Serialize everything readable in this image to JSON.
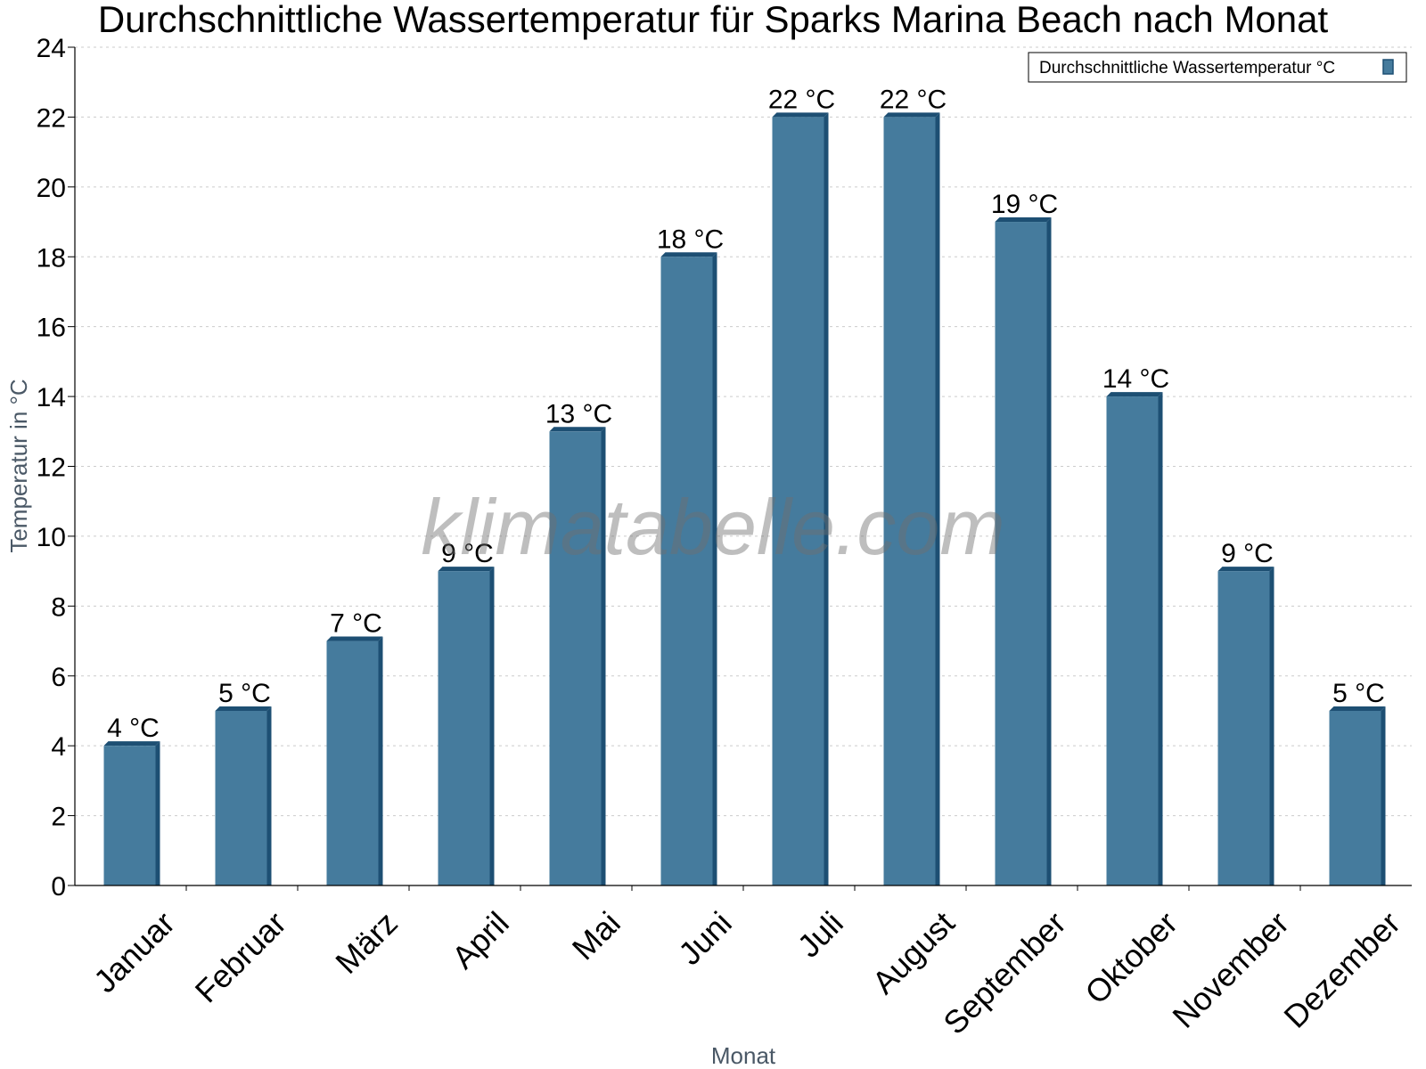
{
  "chart_data": {
    "type": "bar",
    "title": "Durchschnittliche Wassertemperatur für Sparks Marina Beach nach Monat",
    "xlabel": "Monat",
    "ylabel": "Temperatur in °C",
    "categories": [
      "Januar",
      "Februar",
      "März",
      "April",
      "Mai",
      "Juni",
      "Juli",
      "August",
      "September",
      "Oktober",
      "November",
      "Dezember"
    ],
    "series": [
      {
        "name": "Durchschnittliche Wassertemperatur °C",
        "values": [
          4,
          5,
          7,
          9,
          13,
          18,
          22,
          22,
          19,
          14,
          9,
          5
        ],
        "color": "#457b9d",
        "data_labels": [
          "4 °C",
          "5 °C",
          "7 °C",
          "9 °C",
          "13 °C",
          "18 °C",
          "22 °C",
          "22 °C",
          "19 °C",
          "14 °C",
          "9 °C",
          "5 °C"
        ]
      }
    ],
    "ylim": [
      0,
      24
    ],
    "yticks": [
      0,
      2,
      4,
      6,
      8,
      10,
      12,
      14,
      16,
      18,
      20,
      22,
      24
    ],
    "grid": true,
    "legend_position": "top-right"
  },
  "watermark": "klimatabelle.com",
  "colors": {
    "bar": "#457b9d",
    "bar_side": "#1d4f73",
    "grid": "#cccccc",
    "axis": "#000000"
  }
}
